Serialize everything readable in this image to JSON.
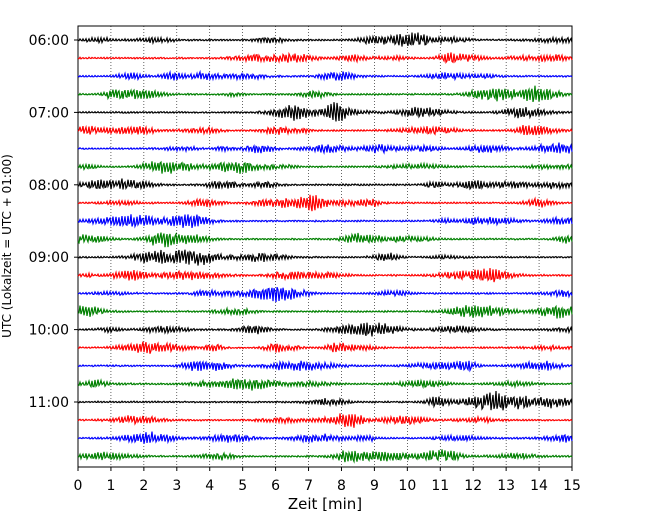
{
  "chart_data": {
    "type": "line",
    "title": "",
    "xlabel": "Zeit  [min]",
    "ylabel": "UTC (Lokalzeit = UTC + 01:00)",
    "xlim": [
      0,
      15
    ],
    "x_ticks": [
      "0",
      "1",
      "2",
      "3",
      "4",
      "5",
      "6",
      "7",
      "8",
      "9",
      "10",
      "11",
      "12",
      "13",
      "14",
      "15"
    ],
    "y_tick_labels": [
      "06:00",
      "07:00",
      "08:00",
      "09:00",
      "10:00",
      "11:00"
    ],
    "trace_count": 24,
    "trace_interval_minutes": 15,
    "start_time": "06:00",
    "trace_colors": [
      "#000000",
      "#ff0000",
      "#0000ff",
      "#008000"
    ],
    "grid": "vertical-dotted",
    "legend": "none"
  }
}
